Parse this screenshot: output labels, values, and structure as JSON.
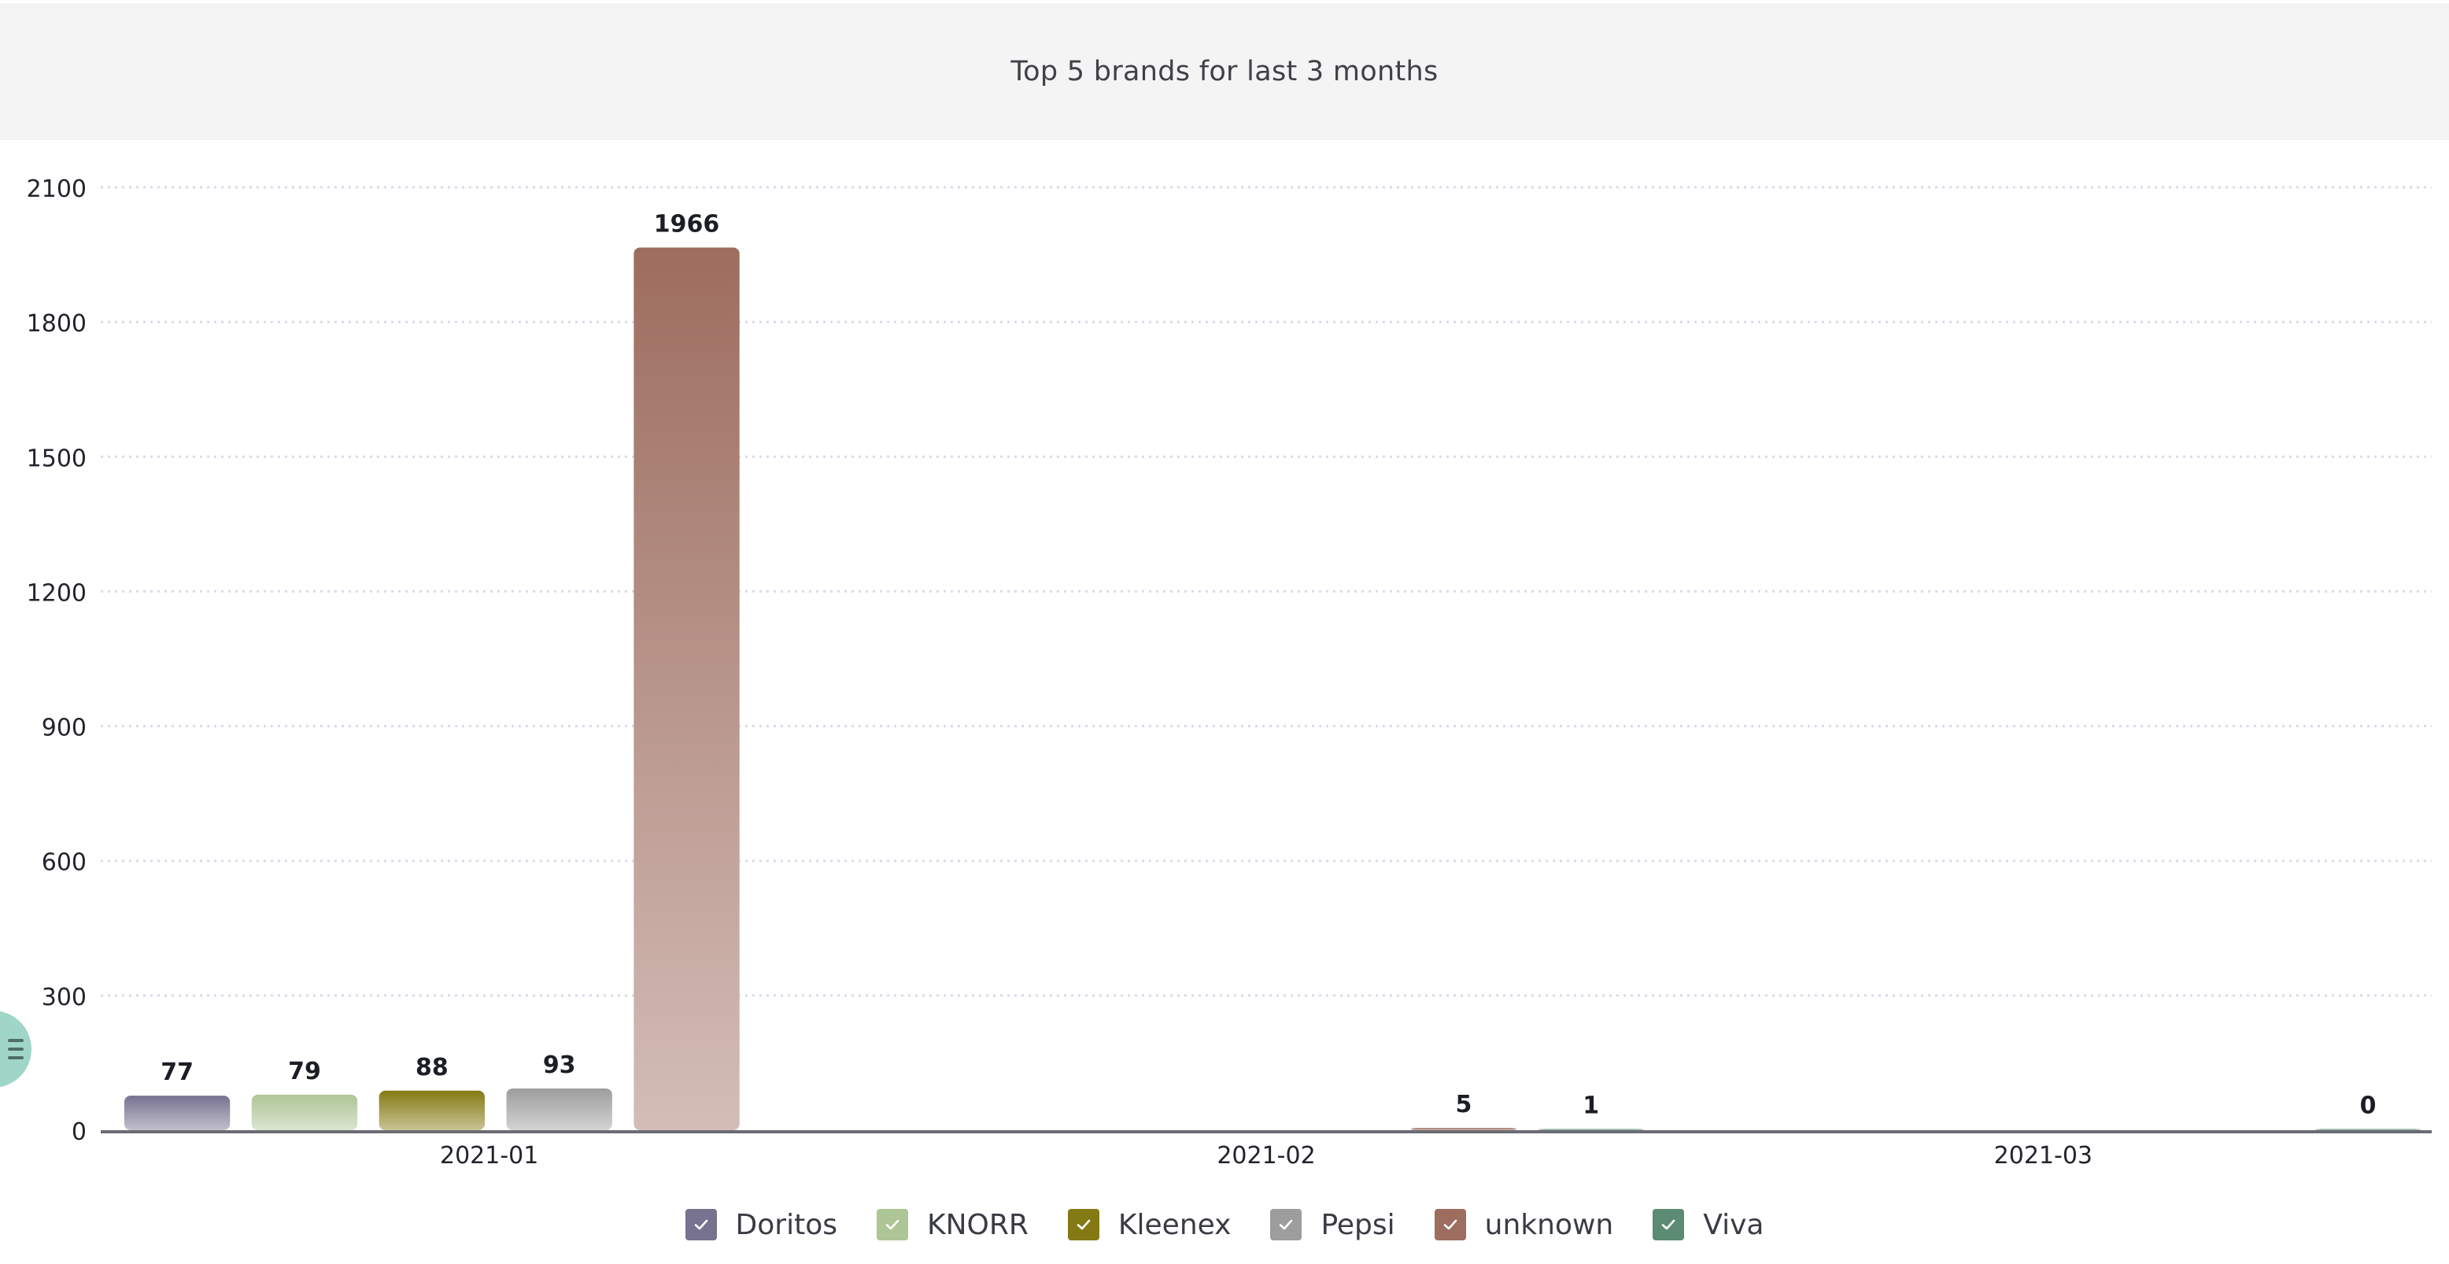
{
  "header": {
    "title": "Top 5 brands for last 3 months"
  },
  "chart_data": {
    "type": "bar",
    "title": "Top 5 brands for last 3 months",
    "xlabel": "",
    "ylabel": "",
    "ylim": [
      0,
      2100
    ],
    "yticks": [
      0,
      300,
      600,
      900,
      1200,
      1500,
      1800,
      2100
    ],
    "grid": true,
    "legend_position": "bottom",
    "categories": [
      "2021-01",
      "2021-02",
      "2021-03"
    ],
    "series": [
      {
        "name": "Doritos",
        "color": "#77728f",
        "values": [
          77,
          null,
          null
        ]
      },
      {
        "name": "KNORR",
        "color": "#aec596",
        "values": [
          79,
          null,
          null
        ]
      },
      {
        "name": "Kleenex",
        "color": "#847a14",
        "values": [
          88,
          null,
          null
        ]
      },
      {
        "name": "Pepsi",
        "color": "#9d9d9d",
        "values": [
          93,
          null,
          null
        ]
      },
      {
        "name": "unknown",
        "color": "#9d6d5f",
        "values": [
          1966,
          5,
          null
        ]
      },
      {
        "name": "Viva",
        "color": "#5c8b73",
        "values": [
          null,
          1,
          0
        ]
      }
    ]
  },
  "legend": {
    "items": [
      {
        "label": "Doritos",
        "color": "#77728f"
      },
      {
        "label": "KNORR",
        "color": "#aec596"
      },
      {
        "label": "Kleenex",
        "color": "#847a14"
      },
      {
        "label": "Pepsi",
        "color": "#9d9d9d"
      },
      {
        "label": "unknown",
        "color": "#9d6d5f"
      },
      {
        "label": "Viva",
        "color": "#5c8b73"
      }
    ]
  },
  "menu_button": {
    "icon": "menu-icon",
    "color": "#9fd6c7"
  }
}
